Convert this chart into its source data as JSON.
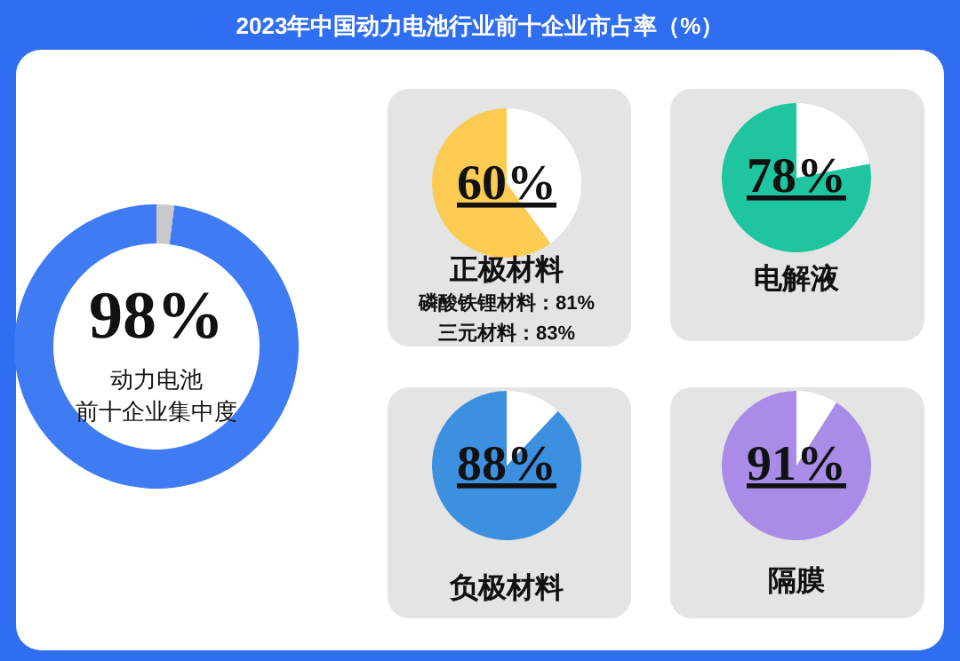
{
  "chart_data": [
    {
      "type": "donut",
      "title": "2023年中国动力电池行业前十企业市占率（%）",
      "categories": [
        null,
        null
      ],
      "values": [
        98,
        2
      ],
      "colors": [
        "#3f7cf4",
        "#c9c9c9"
      ],
      "value_labels": [
        "98%",
        null
      ],
      "annotations": [
        "动力电池",
        "前十企业集中度"
      ]
    },
    {
      "type": "pie",
      "xlabel": "正极材料",
      "categories": [
        null,
        null
      ],
      "values": [
        60,
        40
      ],
      "colors": [
        "#fccb52",
        "#ffffff"
      ],
      "value_labels": [
        "60%",
        null
      ],
      "annotations": [
        "磷酸铁锂材料：81%",
        "三元材料：83%"
      ]
    },
    {
      "type": "pie",
      "xlabel": "电解液",
      "categories": [
        null,
        null
      ],
      "values": [
        78,
        22
      ],
      "colors": [
        "#1fc59f",
        "#ffffff"
      ],
      "value_labels": [
        "78%",
        null
      ]
    },
    {
      "type": "pie",
      "xlabel": "负极材料",
      "categories": [
        null,
        null
      ],
      "values": [
        88,
        12
      ],
      "colors": [
        "#3d8fe0",
        "#ffffff"
      ],
      "value_labels": [
        "88%",
        null
      ]
    },
    {
      "type": "pie",
      "xlabel": "隔膜",
      "categories": [
        null,
        null
      ],
      "values": [
        91,
        9
      ],
      "colors": [
        "#a98be8",
        "#ffffff"
      ],
      "value_labels": [
        "91%",
        null
      ]
    }
  ]
}
